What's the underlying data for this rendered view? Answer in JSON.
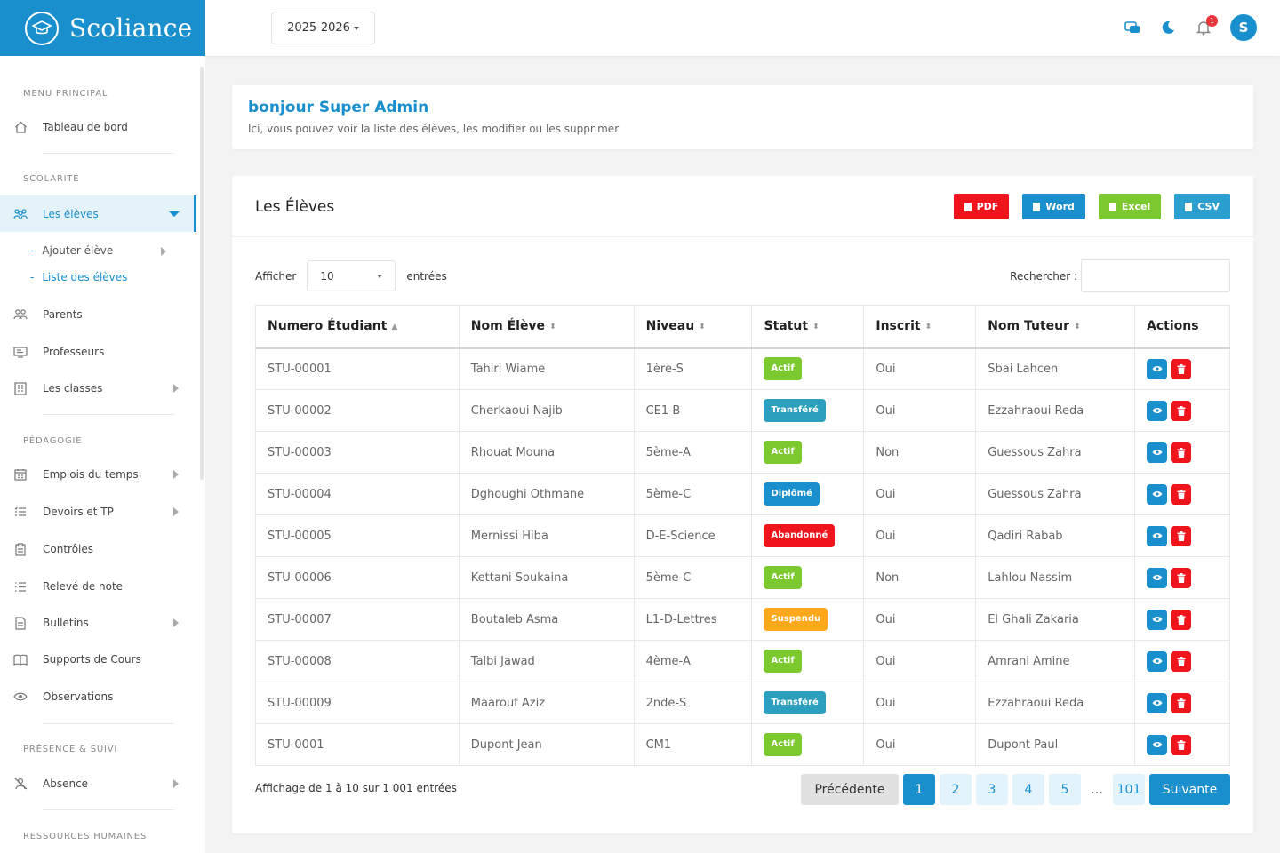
{
  "app": {
    "name": "Scoliance"
  },
  "topbar": {
    "year": "2025-2026",
    "notification_count": "1",
    "avatar_initial": "S"
  },
  "sidebar": {
    "sections": {
      "main": "MENU PRINCIPAL",
      "scolarite": "SCOLARITÉ",
      "pedagogie": "PÉDAGOGIE",
      "presence": "PRÉSENCE & SUIVI",
      "rh": "RESSOURCES HUMAINES"
    },
    "items": {
      "dashboard": "Tableau de bord",
      "eleves": "Les élèves",
      "add_eleve": "Ajouter élève",
      "list_eleves": "Liste des élèves",
      "parents": "Parents",
      "professeurs": "Professeurs",
      "classes": "Les classes",
      "emplois": "Emplois du temps",
      "devoirs": "Devoirs et TP",
      "controles": "Contrôles",
      "releve": "Relevé de note",
      "bulletins": "Bulletins",
      "supports": "Supports de Cours",
      "observations": "Observations",
      "absence": "Absence"
    }
  },
  "greeting": {
    "title": "bonjour Super Admin",
    "subtitle": "Ici, vous pouvez voir la liste des élèves, les modifier ou les supprimer"
  },
  "main": {
    "title": "Les Élèves",
    "exports": {
      "pdf": "PDF",
      "word": "Word",
      "excel": "Excel",
      "csv": "CSV"
    },
    "show_label": "Afficher",
    "show_value": "10",
    "entries_label": "entrées",
    "search_label": "Rechercher :",
    "columns": [
      "Numero Étudiant",
      "Nom Élève",
      "Niveau",
      "Statut",
      "Inscrit",
      "Nom Tuteur",
      "Actions"
    ],
    "rows": [
      [
        "STU-00001",
        "Tahiri Wiame",
        "1ère-S",
        "Actif",
        "Oui",
        "Sbai Lahcen"
      ],
      [
        "STU-00002",
        "Cherkaoui Najib",
        "CE1-B",
        "Transféré",
        "Oui",
        "Ezzahraoui Reda"
      ],
      [
        "STU-00003",
        "Rhouat Mouna",
        "5ème-A",
        "Actif",
        "Non",
        "Guessous Zahra"
      ],
      [
        "STU-00004",
        "Dghoughi Othmane",
        "5ème-C",
        "Diplômé",
        "Oui",
        "Guessous Zahra"
      ],
      [
        "STU-00005",
        "Mernissi Hiba",
        "D-E-Science",
        "Abandonné",
        "Oui",
        "Qadiri Rabab"
      ],
      [
        "STU-00006",
        "Kettani Soukaina",
        "5ème-C",
        "Actif",
        "Non",
        "Lahlou Nassim"
      ],
      [
        "STU-00007",
        "Boutaleb Asma",
        "L1-D-Lettres",
        "Suspendu",
        "Oui",
        "El Ghali Zakaria"
      ],
      [
        "STU-00008",
        "Talbi Jawad",
        "4ème-A",
        "Actif",
        "Oui",
        "Amrani Amine"
      ],
      [
        "STU-00009",
        "Maarouf Aziz",
        "2nde-S",
        "Transféré",
        "Oui",
        "Ezzahraoui Reda"
      ],
      [
        "STU-0001",
        "Dupont Jean",
        "CM1",
        "Actif",
        "Oui",
        "Dupont Paul"
      ]
    ],
    "status_colors": {
      "Actif": "#7cc82f",
      "Transféré": "#2b9fbd",
      "Diplômé": "#1a8fce",
      "Abandonné": "#f0141c",
      "Suspendu": "#ffa81c"
    },
    "info": "Affichage de 1 à 10 sur 1 001 entrées",
    "pagination": {
      "prev": "Précédente",
      "pages": [
        "1",
        "2",
        "3",
        "4",
        "5"
      ],
      "dots": "…",
      "last": "101",
      "next": "Suivante",
      "current": "1"
    }
  }
}
